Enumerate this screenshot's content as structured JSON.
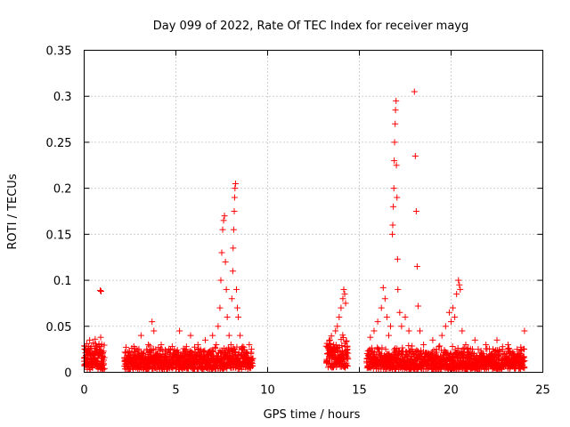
{
  "chart_data": {
    "type": "scatter",
    "title": "Day 099 of 2022, Rate Of TEC Index for receiver mayg",
    "xlabel": "GPS time / hours",
    "ylabel": "ROTI / TECUs",
    "xlim": [
      0,
      25
    ],
    "ylim": [
      0,
      0.35
    ],
    "xticks": [
      0,
      5,
      10,
      15,
      20,
      25
    ],
    "xtick_labels": [
      "0",
      "5",
      "10",
      "15",
      "20",
      "25"
    ],
    "yticks": [
      0,
      0.05,
      0.1,
      0.15,
      0.2,
      0.25,
      0.3,
      0.35
    ],
    "ytick_labels": [
      "0",
      "0.05",
      "0.1",
      "0.15",
      "0.2",
      "0.25",
      "0.3",
      "0.35"
    ],
    "grid": true,
    "marker": "+",
    "color": "#ff0000",
    "series": [
      {
        "name": "ROTI",
        "points": [
          [
            0.0,
            0.012
          ],
          [
            0.05,
            0.025
          ],
          [
            0.1,
            0.018
          ],
          [
            0.15,
            0.031
          ],
          [
            0.2,
            0.008
          ],
          [
            0.25,
            0.022
          ],
          [
            0.3,
            0.035
          ],
          [
            0.35,
            0.015
          ],
          [
            0.4,
            0.028
          ],
          [
            0.45,
            0.01
          ],
          [
            0.5,
            0.032
          ],
          [
            0.55,
            0.02
          ],
          [
            0.6,
            0.036
          ],
          [
            0.65,
            0.012
          ],
          [
            0.7,
            0.025
          ],
          [
            0.75,
            0.018
          ],
          [
            0.8,
            0.03
          ],
          [
            0.85,
            0.009
          ],
          [
            0.9,
            0.038
          ],
          [
            0.95,
            0.015
          ],
          [
            1.0,
            0.02
          ],
          [
            0.88,
            0.089
          ],
          [
            0.92,
            0.088
          ],
          [
            2.2,
            0.012
          ],
          [
            2.4,
            0.018
          ],
          [
            2.6,
            0.01
          ],
          [
            2.8,
            0.022
          ],
          [
            3.0,
            0.015
          ],
          [
            3.1,
            0.04
          ],
          [
            3.2,
            0.02
          ],
          [
            3.4,
            0.012
          ],
          [
            3.5,
            0.03
          ],
          [
            3.6,
            0.018
          ],
          [
            3.7,
            0.055
          ],
          [
            3.8,
            0.045
          ],
          [
            3.9,
            0.025
          ],
          [
            4.0,
            0.015
          ],
          [
            4.2,
            0.03
          ],
          [
            4.4,
            0.02
          ],
          [
            4.6,
            0.012
          ],
          [
            4.8,
            0.028
          ],
          [
            5.0,
            0.018
          ],
          [
            5.2,
            0.045
          ],
          [
            5.4,
            0.022
          ],
          [
            5.6,
            0.015
          ],
          [
            5.8,
            0.04
          ],
          [
            6.0,
            0.02
          ],
          [
            6.2,
            0.03
          ],
          [
            6.4,
            0.012
          ],
          [
            6.6,
            0.035
          ],
          [
            6.8,
            0.022
          ],
          [
            7.0,
            0.04
          ],
          [
            7.2,
            0.03
          ],
          [
            7.3,
            0.05
          ],
          [
            7.4,
            0.07
          ],
          [
            7.45,
            0.1
          ],
          [
            7.5,
            0.13
          ],
          [
            7.55,
            0.155
          ],
          [
            7.6,
            0.165
          ],
          [
            7.65,
            0.17
          ],
          [
            7.7,
            0.12
          ],
          [
            7.75,
            0.09
          ],
          [
            7.8,
            0.06
          ],
          [
            7.9,
            0.04
          ],
          [
            8.0,
            0.03
          ],
          [
            8.05,
            0.08
          ],
          [
            8.1,
            0.11
          ],
          [
            8.12,
            0.135
          ],
          [
            8.15,
            0.155
          ],
          [
            8.18,
            0.175
          ],
          [
            8.2,
            0.19
          ],
          [
            8.22,
            0.2
          ],
          [
            8.25,
            0.205
          ],
          [
            8.3,
            0.09
          ],
          [
            8.35,
            0.07
          ],
          [
            8.4,
            0.06
          ],
          [
            8.5,
            0.04
          ],
          [
            8.6,
            0.025
          ],
          [
            8.8,
            0.02
          ],
          [
            9.0,
            0.03
          ],
          [
            9.2,
            0.015
          ],
          [
            13.3,
            0.02
          ],
          [
            13.4,
            0.035
          ],
          [
            13.5,
            0.015
          ],
          [
            13.6,
            0.03
          ],
          [
            13.7,
            0.045
          ],
          [
            13.8,
            0.05
          ],
          [
            13.9,
            0.06
          ],
          [
            14.0,
            0.07
          ],
          [
            14.1,
            0.08
          ],
          [
            14.15,
            0.09
          ],
          [
            14.2,
            0.085
          ],
          [
            14.25,
            0.075
          ],
          [
            14.3,
            0.01
          ],
          [
            14.35,
            0.025
          ],
          [
            15.5,
            0.02
          ],
          [
            15.6,
            0.038
          ],
          [
            15.8,
            0.045
          ],
          [
            16.0,
            0.055
          ],
          [
            16.1,
            0.02
          ],
          [
            16.2,
            0.07
          ],
          [
            16.3,
            0.092
          ],
          [
            16.4,
            0.08
          ],
          [
            16.5,
            0.06
          ],
          [
            16.6,
            0.04
          ],
          [
            16.7,
            0.05
          ],
          [
            16.8,
            0.15
          ],
          [
            16.82,
            0.16
          ],
          [
            16.85,
            0.18
          ],
          [
            16.88,
            0.2
          ],
          [
            16.9,
            0.23
          ],
          [
            16.92,
            0.25
          ],
          [
            16.95,
            0.27
          ],
          [
            16.97,
            0.285
          ],
          [
            17.0,
            0.295
          ],
          [
            17.02,
            0.225
          ],
          [
            17.05,
            0.19
          ],
          [
            17.08,
            0.123
          ],
          [
            17.1,
            0.09
          ],
          [
            17.2,
            0.065
          ],
          [
            17.3,
            0.05
          ],
          [
            17.5,
            0.06
          ],
          [
            17.7,
            0.045
          ],
          [
            18.0,
            0.305
          ],
          [
            18.05,
            0.235
          ],
          [
            18.1,
            0.175
          ],
          [
            18.15,
            0.115
          ],
          [
            18.2,
            0.072
          ],
          [
            18.3,
            0.045
          ],
          [
            18.5,
            0.03
          ],
          [
            18.8,
            0.02
          ],
          [
            19.0,
            0.035
          ],
          [
            19.2,
            0.025
          ],
          [
            19.5,
            0.04
          ],
          [
            19.7,
            0.05
          ],
          [
            19.9,
            0.065
          ],
          [
            20.0,
            0.055
          ],
          [
            20.1,
            0.07
          ],
          [
            20.2,
            0.06
          ],
          [
            20.3,
            0.085
          ],
          [
            20.4,
            0.1
          ],
          [
            20.45,
            0.095
          ],
          [
            20.5,
            0.09
          ],
          [
            20.6,
            0.045
          ],
          [
            20.8,
            0.03
          ],
          [
            21.0,
            0.02
          ],
          [
            21.3,
            0.035
          ],
          [
            21.6,
            0.018
          ],
          [
            21.9,
            0.03
          ],
          [
            22.2,
            0.02
          ],
          [
            22.5,
            0.035
          ],
          [
            22.8,
            0.025
          ],
          [
            23.1,
            0.03
          ],
          [
            23.4,
            0.018
          ],
          [
            23.6,
            0.025
          ],
          [
            23.8,
            0.02
          ],
          [
            24.0,
            0.045
          ]
        ]
      }
    ],
    "dense_bands": [
      {
        "x_from": 0.0,
        "x_to": 1.1,
        "y_min": 0.003,
        "y_max": 0.035
      },
      {
        "x_from": 2.2,
        "x_to": 9.2,
        "y_min": 0.003,
        "y_max": 0.03
      },
      {
        "x_from": 13.2,
        "x_to": 14.4,
        "y_min": 0.005,
        "y_max": 0.045
      },
      {
        "x_from": 15.4,
        "x_to": 24.0,
        "y_min": 0.003,
        "y_max": 0.03
      }
    ]
  }
}
